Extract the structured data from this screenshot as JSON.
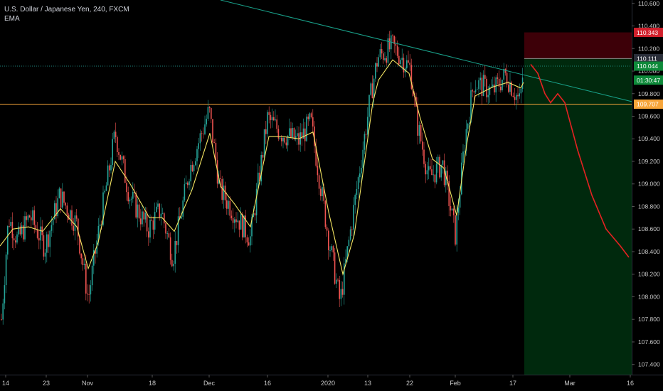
{
  "header": {
    "symbol_line": "U.S. Dollar / Japanese Yen, 240, FXCM",
    "indicator": "EMA"
  },
  "colors": {
    "background": "#000000",
    "candle_up": "#26a69a",
    "candle_down": "#ef5350",
    "ema": "#f5e663",
    "trendline": "#19a38c",
    "support_line": "#f7a53a",
    "stop_zone": "#3d0008",
    "target_zone": "#00290d",
    "projection": "#e52222",
    "axis_text": "#c8c8c8",
    "current_price_bg": "#0e8a3a"
  },
  "chart_data": {
    "type": "candlestick",
    "instrument": "U.S. Dollar / Japanese Yen",
    "timeframe": "240",
    "source": "FXCM",
    "ylim": [
      107.31,
      110.63
    ],
    "y_ticks": [
      107.4,
      107.6,
      107.8,
      108.0,
      108.2,
      108.4,
      108.6,
      108.8,
      109.0,
      109.2,
      109.4,
      109.6,
      109.8,
      110.0,
      110.2,
      110.4,
      110.6
    ],
    "y_tick_labels": [
      "107.400",
      "107.600",
      "107.800",
      "108.000",
      "108.200",
      "108.400",
      "108.600",
      "108.800",
      "109.000",
      "109.200",
      "109.400",
      "109.600",
      "109.800",
      "110.000",
      "110.200",
      "110.400",
      "110.600"
    ],
    "x_tick_labels": [
      "14",
      "23",
      "Nov",
      "18",
      "Dec",
      "16",
      "2020",
      "13",
      "22",
      "Feb",
      "17",
      "Mar",
      "16"
    ],
    "x_tick_positions": [
      8,
      65,
      123,
      214,
      294,
      376,
      461,
      517,
      576,
      640,
      721,
      801,
      886
    ],
    "close_path": [
      [
        0,
        107.62
      ],
      [
        12,
        108.7
      ],
      [
        25,
        108.5
      ],
      [
        42,
        108.72
      ],
      [
        63,
        108.44
      ],
      [
        84,
        108.9
      ],
      [
        108,
        108.64
      ],
      [
        124,
        107.98
      ],
      [
        137,
        108.52
      ],
      [
        162,
        109.45
      ],
      [
        182,
        108.9
      ],
      [
        208,
        108.6
      ],
      [
        226,
        108.78
      ],
      [
        243,
        108.35
      ],
      [
        266,
        109.12
      ],
      [
        294,
        109.65
      ],
      [
        309,
        108.95
      ],
      [
        329,
        108.75
      ],
      [
        352,
        108.52
      ],
      [
        376,
        109.58
      ],
      [
        396,
        109.45
      ],
      [
        420,
        109.38
      ],
      [
        437,
        109.55
      ],
      [
        461,
        108.55
      ],
      [
        478,
        107.95
      ],
      [
        493,
        108.6
      ],
      [
        522,
        109.82
      ],
      [
        531,
        110.12
      ],
      [
        552,
        110.22
      ],
      [
        577,
        110.02
      ],
      [
        586,
        109.55
      ],
      [
        603,
        109.05
      ],
      [
        622,
        109.18
      ],
      [
        640,
        108.55
      ],
      [
        654,
        109.42
      ],
      [
        666,
        109.9
      ],
      [
        693,
        109.82
      ],
      [
        711,
        109.97
      ],
      [
        731,
        109.72
      ],
      [
        736,
        110.04
      ]
    ],
    "ema_path": [
      [
        0,
        108.45
      ],
      [
        18,
        108.6
      ],
      [
        40,
        108.62
      ],
      [
        60,
        108.58
      ],
      [
        85,
        108.78
      ],
      [
        108,
        108.62
      ],
      [
        124,
        108.25
      ],
      [
        138,
        108.48
      ],
      [
        162,
        109.2
      ],
      [
        183,
        109.0
      ],
      [
        210,
        108.7
      ],
      [
        228,
        108.7
      ],
      [
        245,
        108.58
      ],
      [
        270,
        108.95
      ],
      [
        295,
        109.45
      ],
      [
        310,
        108.98
      ],
      [
        330,
        108.82
      ],
      [
        352,
        108.62
      ],
      [
        378,
        109.42
      ],
      [
        398,
        109.42
      ],
      [
        420,
        109.4
      ],
      [
        440,
        109.46
      ],
      [
        462,
        108.75
      ],
      [
        482,
        108.2
      ],
      [
        498,
        108.55
      ],
      [
        524,
        109.72
      ],
      [
        532,
        109.92
      ],
      [
        552,
        110.1
      ],
      [
        575,
        109.98
      ],
      [
        590,
        109.6
      ],
      [
        608,
        109.22
      ],
      [
        624,
        109.14
      ],
      [
        642,
        108.72
      ],
      [
        656,
        109.35
      ],
      [
        668,
        109.78
      ],
      [
        693,
        109.86
      ],
      [
        714,
        109.9
      ],
      [
        732,
        109.85
      ],
      [
        736,
        109.9
      ]
    ],
    "trendline": {
      "x1": 310,
      "p1": 110.63,
      "x2": 888,
      "p2": 109.73
    },
    "horizontal_lines": [
      {
        "name": "support",
        "price": 109.707,
        "style": "solid"
      },
      {
        "name": "current",
        "price": 110.044,
        "style": "dotted"
      }
    ],
    "position": {
      "x_start": 737,
      "x_end": 888,
      "entry": 110.111,
      "stop": 110.343,
      "target": 107.31,
      "entry_label": "110.111",
      "stop_label": "110.343"
    },
    "projection_path": [
      [
        746,
        110.06
      ],
      [
        756,
        109.98
      ],
      [
        766,
        109.8
      ],
      [
        774,
        109.72
      ],
      [
        784,
        109.8
      ],
      [
        794,
        109.72
      ],
      [
        812,
        109.3
      ],
      [
        832,
        108.9
      ],
      [
        852,
        108.6
      ],
      [
        872,
        108.45
      ],
      [
        884,
        108.35
      ]
    ],
    "price_labels": [
      {
        "label": "110.343",
        "price": 110.343,
        "bg": "#d1202c"
      },
      {
        "label": "110.111",
        "price": 110.111,
        "bg": "#2a2e39"
      },
      {
        "label": "110.044",
        "price": 110.044,
        "bg": "#0e8a3a"
      },
      {
        "label": "01:30:47",
        "price": 109.92,
        "bg": "#0e8a3a"
      },
      {
        "label": "109.707",
        "price": 109.707,
        "bg": "#f7a53a"
      }
    ]
  }
}
